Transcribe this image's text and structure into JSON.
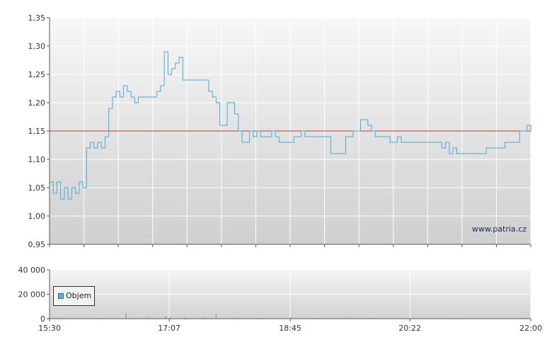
{
  "chart_data": [
    {
      "type": "line",
      "title": "",
      "xlabel": "",
      "ylabel": "",
      "ylim": [
        0.95,
        1.35
      ],
      "y_ticks": [
        "1,35",
        "1,30",
        "1,25",
        "1,20",
        "1,15",
        "1,10",
        "1,05",
        "1,00",
        "0,95"
      ],
      "reference_line": {
        "value": 1.15,
        "color": "#cc3333"
      },
      "watermark": "www.patria.cz",
      "grid": true,
      "series": [
        {
          "color": "#4aaad6",
          "points": [
            [
              "15:30",
              1.06
            ],
            [
              "15:33",
              1.04
            ],
            [
              "15:36",
              1.06
            ],
            [
              "15:39",
              1.03
            ],
            [
              "15:42",
              1.05
            ],
            [
              "15:45",
              1.03
            ],
            [
              "15:48",
              1.05
            ],
            [
              "15:51",
              1.04
            ],
            [
              "15:54",
              1.06
            ],
            [
              "15:57",
              1.05
            ],
            [
              "16:00",
              1.12
            ],
            [
              "16:03",
              1.13
            ],
            [
              "16:06",
              1.12
            ],
            [
              "16:09",
              1.13
            ],
            [
              "16:12",
              1.12
            ],
            [
              "16:15",
              1.14
            ],
            [
              "16:18",
              1.19
            ],
            [
              "16:21",
              1.21
            ],
            [
              "16:24",
              1.22
            ],
            [
              "16:27",
              1.21
            ],
            [
              "16:30",
              1.23
            ],
            [
              "16:33",
              1.22
            ],
            [
              "16:36",
              1.21
            ],
            [
              "16:39",
              1.2
            ],
            [
              "16:42",
              1.21
            ],
            [
              "16:45",
              1.21
            ],
            [
              "16:48",
              1.21
            ],
            [
              "16:51",
              1.21
            ],
            [
              "16:54",
              1.21
            ],
            [
              "16:57",
              1.22
            ],
            [
              "17:00",
              1.23
            ],
            [
              "17:03",
              1.29
            ],
            [
              "17:06",
              1.25
            ],
            [
              "17:09",
              1.26
            ],
            [
              "17:12",
              1.27
            ],
            [
              "17:15",
              1.28
            ],
            [
              "17:18",
              1.24
            ],
            [
              "17:21",
              1.24
            ],
            [
              "17:24",
              1.24
            ],
            [
              "17:27",
              1.24
            ],
            [
              "17:30",
              1.24
            ],
            [
              "17:33",
              1.24
            ],
            [
              "17:36",
              1.24
            ],
            [
              "17:39",
              1.22
            ],
            [
              "17:42",
              1.21
            ],
            [
              "17:45",
              1.2
            ],
            [
              "17:48",
              1.16
            ],
            [
              "17:51",
              1.16
            ],
            [
              "17:54",
              1.2
            ],
            [
              "17:57",
              1.2
            ],
            [
              "18:00",
              1.18
            ],
            [
              "18:03",
              1.15
            ],
            [
              "18:06",
              1.13
            ],
            [
              "18:09",
              1.13
            ],
            [
              "18:12",
              1.15
            ],
            [
              "18:15",
              1.14
            ],
            [
              "18:18",
              1.15
            ],
            [
              "18:21",
              1.14
            ],
            [
              "18:24",
              1.14
            ],
            [
              "18:27",
              1.14
            ],
            [
              "18:30",
              1.15
            ],
            [
              "18:33",
              1.14
            ],
            [
              "18:36",
              1.13
            ],
            [
              "18:39",
              1.13
            ],
            [
              "18:42",
              1.13
            ],
            [
              "18:45",
              1.13
            ],
            [
              "18:48",
              1.14
            ],
            [
              "18:51",
              1.14
            ],
            [
              "18:54",
              1.15
            ],
            [
              "18:57",
              1.14
            ],
            [
              "19:00",
              1.14
            ],
            [
              "19:03",
              1.14
            ],
            [
              "19:06",
              1.14
            ],
            [
              "19:09",
              1.14
            ],
            [
              "19:12",
              1.14
            ],
            [
              "19:15",
              1.14
            ],
            [
              "19:18",
              1.11
            ],
            [
              "19:21",
              1.11
            ],
            [
              "19:24",
              1.11
            ],
            [
              "19:27",
              1.11
            ],
            [
              "19:30",
              1.14
            ],
            [
              "19:33",
              1.14
            ],
            [
              "19:36",
              1.15
            ],
            [
              "19:39",
              1.15
            ],
            [
              "19:42",
              1.17
            ],
            [
              "19:45",
              1.17
            ],
            [
              "19:48",
              1.16
            ],
            [
              "19:51",
              1.15
            ],
            [
              "19:54",
              1.14
            ],
            [
              "19:57",
              1.14
            ],
            [
              "20:00",
              1.14
            ],
            [
              "20:03",
              1.14
            ],
            [
              "20:06",
              1.13
            ],
            [
              "20:09",
              1.13
            ],
            [
              "20:12",
              1.14
            ],
            [
              "20:15",
              1.13
            ],
            [
              "20:18",
              1.13
            ],
            [
              "20:21",
              1.13
            ],
            [
              "20:24",
              1.13
            ],
            [
              "20:27",
              1.13
            ],
            [
              "20:30",
              1.13
            ],
            [
              "20:33",
              1.13
            ],
            [
              "20:36",
              1.13
            ],
            [
              "20:39",
              1.13
            ],
            [
              "20:42",
              1.13
            ],
            [
              "20:45",
              1.13
            ],
            [
              "20:48",
              1.12
            ],
            [
              "20:51",
              1.13
            ],
            [
              "20:54",
              1.11
            ],
            [
              "20:57",
              1.12
            ],
            [
              "21:00",
              1.11
            ],
            [
              "21:03",
              1.11
            ],
            [
              "21:06",
              1.11
            ],
            [
              "21:09",
              1.11
            ],
            [
              "21:12",
              1.11
            ],
            [
              "21:15",
              1.11
            ],
            [
              "21:18",
              1.11
            ],
            [
              "21:21",
              1.11
            ],
            [
              "21:24",
              1.12
            ],
            [
              "21:27",
              1.12
            ],
            [
              "21:30",
              1.12
            ],
            [
              "21:33",
              1.12
            ],
            [
              "21:36",
              1.12
            ],
            [
              "21:39",
              1.13
            ],
            [
              "21:42",
              1.13
            ],
            [
              "21:45",
              1.13
            ],
            [
              "21:48",
              1.13
            ],
            [
              "21:51",
              1.15
            ],
            [
              "21:54",
              1.15
            ],
            [
              "21:57",
              1.16
            ],
            [
              "22:00",
              1.15
            ]
          ]
        }
      ]
    },
    {
      "type": "bar",
      "title": "",
      "ylim": [
        0,
        40000
      ],
      "y_ticks": [
        "40 000",
        "20 000",
        "0"
      ],
      "x_ticks": [
        "15:30",
        "17:07",
        "18:45",
        "20:22",
        "22:00"
      ],
      "legend": {
        "label": "Objem",
        "placement": "left",
        "color": "#5aaee0"
      },
      "grid": true,
      "series": [
        {
          "name": "Objem",
          "color": "#4aaad6",
          "points": [
            [
              "15:40",
              900
            ],
            [
              "16:10",
              800
            ],
            [
              "16:32",
              4800
            ],
            [
              "16:50",
              1000
            ],
            [
              "17:04",
              2200
            ],
            [
              "17:08",
              1500
            ],
            [
              "17:20",
              900
            ],
            [
              "17:35",
              1000
            ],
            [
              "17:45",
              4000
            ],
            [
              "18:00",
              800
            ],
            [
              "18:20",
              600
            ],
            [
              "18:46",
              1200
            ],
            [
              "19:05",
              700
            ],
            [
              "19:30",
              800
            ],
            [
              "19:50",
              600
            ],
            [
              "20:25",
              700
            ],
            [
              "21:00",
              500
            ],
            [
              "21:55",
              700
            ]
          ]
        }
      ]
    }
  ]
}
